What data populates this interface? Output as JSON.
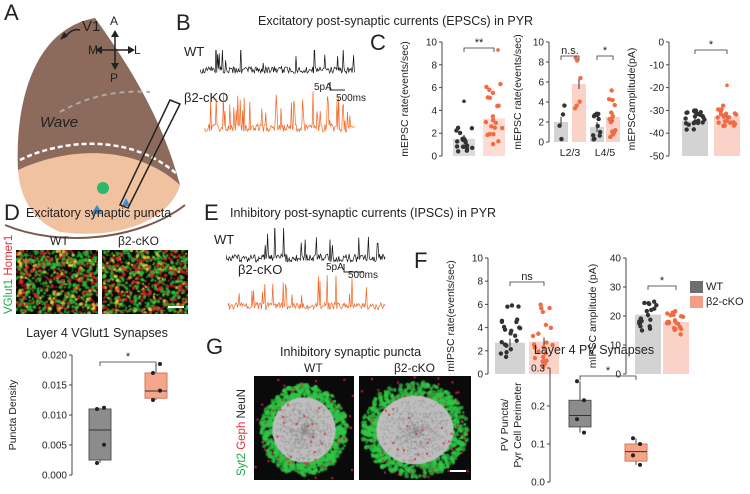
{
  "colors": {
    "wt": "#6e6e6e",
    "ko": "#f59c84",
    "ko_dot": "#f26b43",
    "trace_wt": "#111111",
    "trace_ko": "#f26522",
    "brain_top": "#8c6a5c",
    "brain_bottom": "#f0c2a0",
    "box_wt": "#8c8c8c",
    "box_ko": "#f4a58a"
  },
  "panelA": {
    "letter": "A",
    "v1": "V1",
    "axes": {
      "a": "A",
      "p": "P",
      "m": "M",
      "l": "L"
    },
    "wave": "Wave"
  },
  "panelB": {
    "letter": "B",
    "title": "Excitatory post-synaptic currents (EPSCs) in PYR",
    "wt": "WT",
    "ko": "β2-cKO",
    "scale_amp": "5pA",
    "scale_time": "500ms"
  },
  "panelC": {
    "letter": "C"
  },
  "panelD": {
    "letter": "D",
    "title": "Excitatory synaptic puncta",
    "wt": "WT",
    "ko": "β2-cKO",
    "stain_a": "VGlut1",
    "stain_b": "Homer1"
  },
  "panelE": {
    "letter": "E",
    "title": "Inhibitory post-synaptic currents (IPSCs) in PYR",
    "wt": "WT",
    "ko": "β2-cKO",
    "scale_amp": "5pA",
    "scale_time": "500ms"
  },
  "panelF": {
    "letter": "F",
    "legend_wt": "WT",
    "legend_ko": "β2-cKO"
  },
  "panelG": {
    "letter": "G",
    "title": "Inhibitory synaptic puncta",
    "wt": "WT",
    "ko": "β2-cKO",
    "stain_a": "Syt2",
    "stain_b": "Geph",
    "stain_c": "NeuN"
  },
  "chart_data": [
    {
      "id": "C1",
      "type": "bar",
      "ylabel": "mEPSC rate(events/sec)",
      "ylim": [
        0,
        10
      ],
      "yticks": [
        "0",
        "2",
        "4",
        "6",
        "8",
        "10"
      ],
      "categories": [
        "WT",
        "β2-cKO"
      ],
      "values": [
        1.5,
        3.3
      ],
      "sig": "**"
    },
    {
      "id": "C2",
      "type": "bar",
      "ylabel": "mEPSC rate(events/sec)",
      "ylim": [
        0,
        10
      ],
      "yticks": [
        "0",
        "2",
        "4",
        "6",
        "8",
        "10"
      ],
      "categories": [
        "L2/3",
        "L4/5"
      ],
      "series": [
        {
          "values": [
            2.0,
            1.5
          ]
        },
        {
          "values": [
            5.8,
            2.5
          ]
        }
      ],
      "sig": [
        "n.s.",
        "*"
      ]
    },
    {
      "id": "C3",
      "type": "bar",
      "ylabel": "mEPSCamplitude(pA)",
      "ylim": [
        0,
        -50
      ],
      "yticks": [
        "0",
        "-10",
        "-20",
        "-30",
        "-40",
        "-50"
      ],
      "categories": [
        "WT",
        "β2-cKO"
      ],
      "values": [
        -15.5,
        -17.5
      ],
      "sig": "*"
    },
    {
      "id": "D",
      "type": "box",
      "title": "Layer 4 VGlut1 Synapses",
      "ylabel": "Puncta Density",
      "ylim": [
        0,
        0.02
      ],
      "yticks": [
        "0.000",
        "0.005",
        "0.010",
        "0.015",
        "0.020"
      ],
      "categories": [
        "WT",
        "β2-cKO"
      ],
      "boxes": [
        {
          "min": 0.002,
          "q1": 0.0025,
          "median": 0.0075,
          "q3": 0.011,
          "max": 0.0112
        },
        {
          "min": 0.0125,
          "q1": 0.0128,
          "median": 0.014,
          "q3": 0.017,
          "max": 0.0185
        }
      ],
      "sig": "*"
    },
    {
      "id": "F1",
      "type": "bar",
      "ylabel": "mIPSC rate(events/sec)",
      "ylim": [
        0,
        10
      ],
      "yticks": [
        "0",
        "2",
        "4",
        "6",
        "8",
        "10"
      ],
      "categories": [
        "WT",
        "β2-cKO"
      ],
      "values": [
        2.7,
        2.8
      ],
      "sig": "ns"
    },
    {
      "id": "F2",
      "type": "bar",
      "ylabel": "mIPSC amplitude (pA)",
      "ylim": [
        0,
        40
      ],
      "yticks": [
        "0",
        "10",
        "20",
        "30",
        "40"
      ],
      "categories": [
        "WT",
        "β2-cKO"
      ],
      "values": [
        20.5,
        18.0
      ],
      "sig": "*"
    },
    {
      "id": "G",
      "type": "box",
      "title": "Layer 4 PV Synapses",
      "ylabel": "PV Puncta/ Pyr Cell Perimeter",
      "ylim": [
        0,
        0.3
      ],
      "yticks": [
        "0.0",
        "0.1",
        "0.2",
        "0.3"
      ],
      "categories": [
        "WT",
        "β2-cKO"
      ],
      "boxes": [
        {
          "min": 0.13,
          "q1": 0.145,
          "median": 0.175,
          "q3": 0.215,
          "max": 0.265
        },
        {
          "min": 0.045,
          "q1": 0.055,
          "median": 0.08,
          "q3": 0.1,
          "max": 0.115
        }
      ],
      "sig": "*"
    }
  ]
}
